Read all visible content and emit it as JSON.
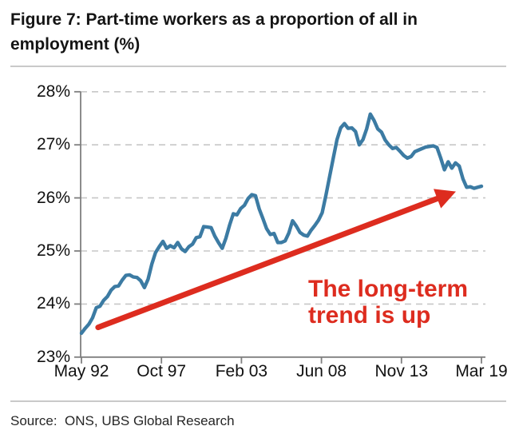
{
  "figure": {
    "title": "Figure 7: Part-time workers as a proportion of all in employment (%)",
    "source": "Source:  ONS, UBS Global Research"
  },
  "colors": {
    "line": "#3c7ba3",
    "accent_red": "#dd2c1f",
    "grid": "#c7c7c7",
    "axis": "#7f7f7f",
    "text": "#141414"
  },
  "annotation": {
    "line1": "The long-term",
    "line2": "trend is up"
  },
  "chart_data": {
    "type": "line",
    "title": "Part-time workers as a proportion of all in employment (%)",
    "xlabel": "",
    "ylabel": "",
    "ylim": [
      23,
      28
    ],
    "y_tick_labels": [
      "23%",
      "24%",
      "25%",
      "26%",
      "27%",
      "28%"
    ],
    "x_tick_labels": [
      "May 92",
      "Oct 97",
      "Feb 03",
      "Jun 08",
      "Nov 13",
      "Mar 19"
    ],
    "grid": "dashed horizontal",
    "legend": "none",
    "x_start": "1992-05",
    "x_step_months": 3,
    "series": [
      {
        "name": "Part-time workers as a proportion of all in employment (%)",
        "values": [
          23.45,
          23.54,
          23.62,
          23.74,
          23.93,
          23.96,
          24.07,
          24.14,
          24.26,
          24.33,
          24.34,
          24.45,
          24.54,
          24.55,
          24.51,
          24.5,
          24.44,
          24.31,
          24.47,
          24.75,
          24.97,
          25.08,
          25.18,
          25.05,
          25.1,
          25.06,
          25.16,
          25.04,
          24.99,
          25.08,
          25.13,
          25.25,
          25.27,
          25.46,
          25.45,
          25.44,
          25.28,
          25.16,
          25.05,
          25.24,
          25.49,
          25.7,
          25.68,
          25.8,
          25.86,
          25.99,
          26.06,
          26.04,
          25.79,
          25.61,
          25.42,
          25.31,
          25.33,
          25.16,
          25.16,
          25.19,
          25.34,
          25.57,
          25.47,
          25.35,
          25.3,
          25.28,
          25.39,
          25.48,
          25.58,
          25.72,
          26.05,
          26.4,
          26.75,
          27.1,
          27.32,
          27.4,
          27.31,
          27.32,
          27.25,
          27.0,
          27.1,
          27.3,
          27.58,
          27.46,
          27.3,
          27.24,
          27.09,
          27.0,
          26.93,
          26.95,
          26.88,
          26.8,
          26.75,
          26.78,
          26.87,
          26.9,
          26.93,
          26.96,
          26.97,
          26.98,
          26.95,
          26.75,
          26.53,
          26.68,
          26.56,
          26.66,
          26.6,
          26.36,
          26.2,
          26.21,
          26.18,
          26.2,
          26.22
        ]
      }
    ],
    "annotation_text": "The long-term trend is up",
    "trend_arrow": {
      "from": {
        "month_index": 13.5,
        "value": 23.56
      },
      "to": {
        "month_index": 303.3,
        "value": 26.12
      }
    }
  }
}
